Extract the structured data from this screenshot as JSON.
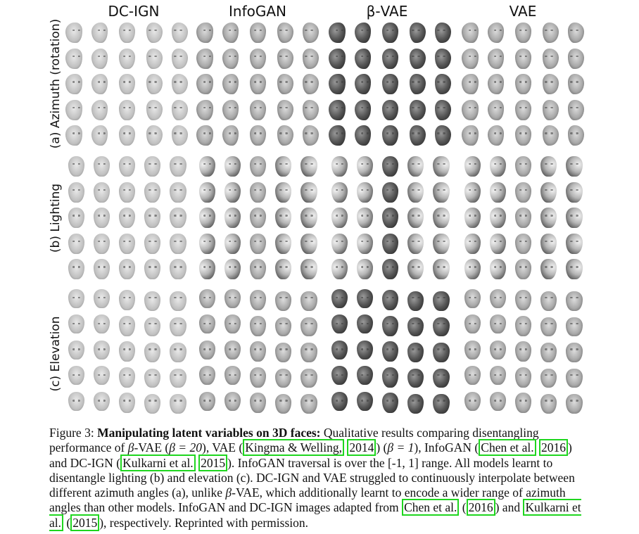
{
  "figure": {
    "columns": [
      "DC-IGN",
      "InfoGAN",
      "β-VAE",
      "VAE"
    ],
    "rows": [
      "(a) Azimuth (rotation)",
      "(b) Lighting",
      "(c) Elevation"
    ]
  },
  "caption": {
    "label": "Figure 3:",
    "bold_title": "Manipulating latent variables on 3D faces:",
    "t1": " Qualitative results comparing disentangling performance of ",
    "t2": "β",
    "t3": "-VAE (",
    "t4": "β = 20",
    "t5": "), VAE (",
    "c1": "Kingma & Welling,",
    "t6": " ",
    "c2": "2014",
    "t7": ") (",
    "t8": "β = 1",
    "t9": "), InfoGAN (",
    "c3": "Chen et al.",
    "t10": " ",
    "c4": "2016",
    "t11": ") and DC-IGN (",
    "c5": "Kulkarni et al.",
    "t12": " ",
    "c6": "2015",
    "t13": "). InfoGAN traversal is over the [-1, 1] range. All models learnt to disentangle lighting (b) and elevation (c). DC-IGN and VAE struggled to continuously interpolate between different azimuth angles (a), unlike ",
    "t14": "β",
    "t15": "-VAE, which additionally learnt to encode a wider range of azimuth angles than other models. InfoGAN and DC-IGN images adapted from ",
    "c7": "Chen et al.",
    "t16": " (",
    "c8": "2016",
    "t17": ") and ",
    "c9": "Kulkarni et al.",
    "t18": " (",
    "c10": "2015",
    "t19": "), respectively. Reprinted with permission."
  }
}
